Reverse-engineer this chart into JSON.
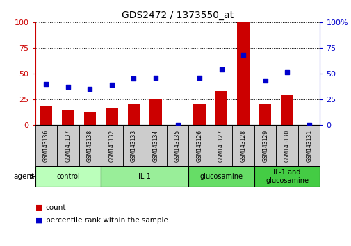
{
  "title": "GDS2472 / 1373550_at",
  "samples": [
    "GSM143136",
    "GSM143137",
    "GSM143138",
    "GSM143132",
    "GSM143133",
    "GSM143134",
    "GSM143135",
    "GSM143126",
    "GSM143127",
    "GSM143128",
    "GSM143129",
    "GSM143130",
    "GSM143131"
  ],
  "counts": [
    18,
    15,
    13,
    17,
    20,
    25,
    0,
    20,
    33,
    100,
    20,
    29,
    0
  ],
  "percentiles": [
    40,
    37,
    35,
    39,
    45,
    46,
    0,
    46,
    54,
    68,
    43,
    51,
    0
  ],
  "groups": [
    {
      "label": "control",
      "start": 0,
      "end": 3,
      "color": "#bbffbb"
    },
    {
      "label": "IL-1",
      "start": 3,
      "end": 7,
      "color": "#99ee99"
    },
    {
      "label": "glucosamine",
      "start": 7,
      "end": 10,
      "color": "#66dd66"
    },
    {
      "label": "IL-1 and\nglucosamine",
      "start": 10,
      "end": 13,
      "color": "#44cc44"
    }
  ],
  "bar_color": "#cc0000",
  "scatter_color": "#0000cc",
  "ylim": [
    0,
    100
  ],
  "yticks": [
    0,
    25,
    50,
    75,
    100
  ],
  "agent_label": "agent",
  "legend_count": "count",
  "legend_pct": "percentile rank within the sample",
  "tick_bg_color": "#cccccc"
}
